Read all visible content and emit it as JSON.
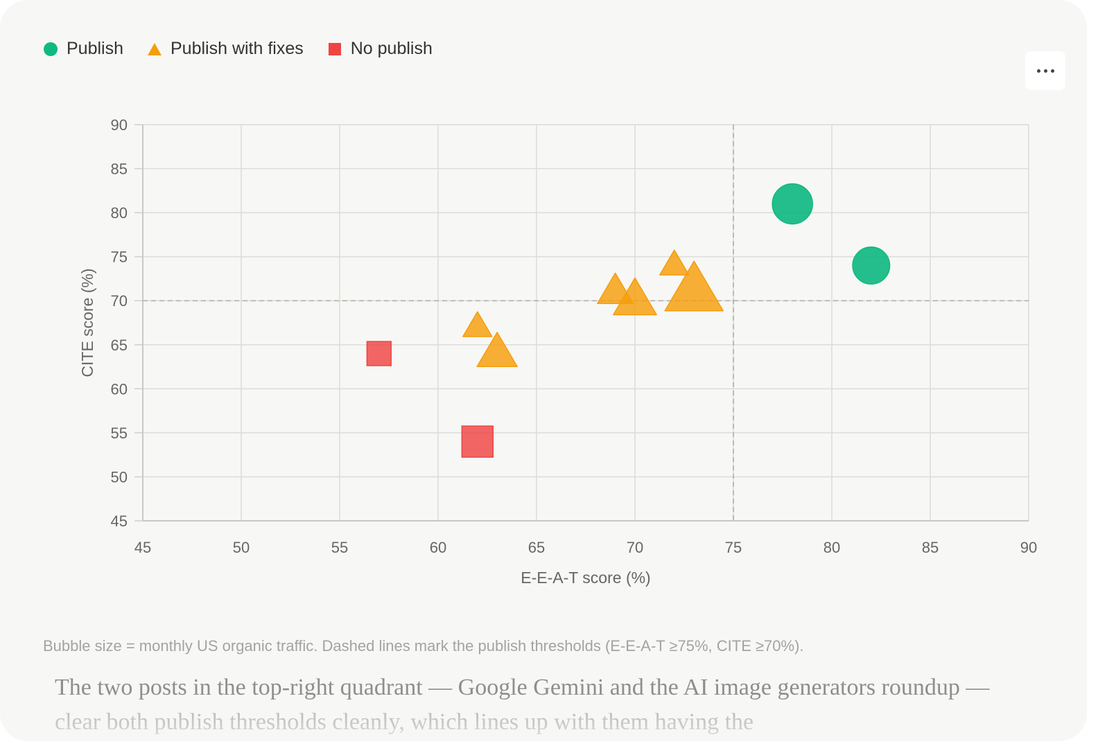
{
  "legend": [
    {
      "label": "Publish",
      "shape": "circle",
      "color": "#10b981"
    },
    {
      "label": "Publish with fixes",
      "shape": "triangle",
      "color": "#f59e0b"
    },
    {
      "label": "No publish",
      "shape": "square",
      "color": "#ef4444"
    }
  ],
  "menu": {
    "icon": "more-horizontal-icon"
  },
  "chart_data": {
    "type": "scatter",
    "xlabel": "E-E-A-T score (%)",
    "ylabel": "CITE score (%)",
    "xlim": [
      45,
      90
    ],
    "ylim": [
      45,
      90
    ],
    "xticks": [
      "45",
      "50",
      "55",
      "60",
      "65",
      "70",
      "75",
      "80",
      "85",
      "90"
    ],
    "yticks": [
      "90",
      "85",
      "80",
      "75",
      "70",
      "65",
      "60",
      "55",
      "50",
      "45"
    ],
    "grid": true,
    "legend_position": "top-left",
    "thresholds": {
      "x": 75,
      "y": 70
    },
    "size_encoding": "monthly US organic traffic",
    "series": [
      {
        "name": "Publish",
        "shape": "circle",
        "color": "#10b981",
        "points": [
          {
            "x": 78,
            "y": 81,
            "size": 1.0
          },
          {
            "x": 82,
            "y": 74,
            "size": 0.85
          }
        ]
      },
      {
        "name": "Publish with fixes",
        "shape": "triangle",
        "color": "#f59e0b",
        "points": [
          {
            "x": 62,
            "y": 67,
            "size": 0.5
          },
          {
            "x": 63,
            "y": 64,
            "size": 0.95
          },
          {
            "x": 69,
            "y": 71,
            "size": 0.75
          },
          {
            "x": 70,
            "y": 70,
            "size": 1.1
          },
          {
            "x": 72,
            "y": 74,
            "size": 0.5
          },
          {
            "x": 73,
            "y": 71,
            "size": 2.0
          }
        ]
      },
      {
        "name": "No publish",
        "shape": "square",
        "color": "#ef4444",
        "points": [
          {
            "x": 57,
            "y": 64,
            "size": 0.6
          },
          {
            "x": 62,
            "y": 54,
            "size": 1.0
          }
        ]
      }
    ]
  },
  "caption": "Bubble size = monthly US organic traffic. Dashed lines mark the publish thresholds (E-E-A-T ≥75%, CITE ≥70%).",
  "body_text": "The two posts in the top-right quadrant — Google Gemini and the AI image generators roundup — clear both publish thresholds cleanly, which lines up with them having the"
}
